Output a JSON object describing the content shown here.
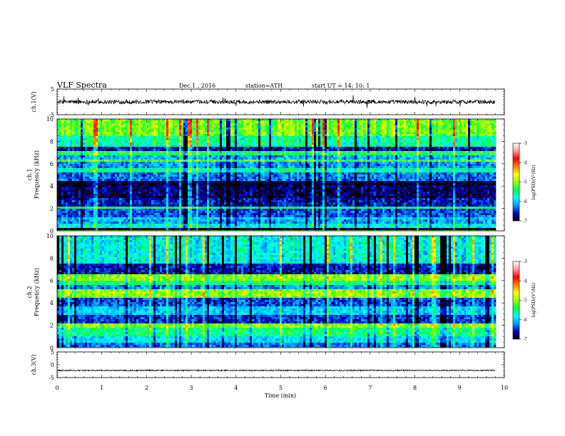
{
  "header": {
    "title": "VLF  Spectra",
    "date": "Dec.1  , 2016",
    "station": "station=ATH",
    "start": "start  UT  =   14: 10: 1"
  },
  "chart_data": [
    {
      "type": "line",
      "name": "ch1-waveform",
      "ylabel": "ch.1(V)",
      "ylim": [
        -5,
        5
      ],
      "yticks": [
        "5",
        "-5"
      ],
      "xlim": [
        0,
        10
      ],
      "duration_min": 9.8,
      "baseline": 0,
      "color": "#000000"
    },
    {
      "type": "heatmap",
      "name": "ch1-spectrogram",
      "ylabel_line1": "ch.1",
      "ylabel_line2": "Frequency  (kHz)",
      "ylim": [
        0,
        10
      ],
      "yticks": [
        "0",
        "2",
        "4",
        "6",
        "8",
        "10"
      ],
      "xlim": [
        0,
        10
      ],
      "duration_min": 9.8,
      "bands": [
        {
          "f": [
            0.0,
            0.35
          ],
          "level": -6.9
        },
        {
          "f": [
            0.35,
            0.7
          ],
          "level": -5.8
        },
        {
          "f": [
            0.7,
            0.95
          ],
          "level": -6.2
        },
        {
          "f": [
            0.95,
            1.3
          ],
          "level": -6.0
        },
        {
          "f": [
            1.3,
            2.0
          ],
          "level": -6.4
        },
        {
          "f": [
            2.0,
            2.2
          ],
          "level": -5.5
        },
        {
          "f": [
            2.2,
            3.0
          ],
          "level": -6.6
        },
        {
          "f": [
            3.0,
            4.0
          ],
          "level": -6.8
        },
        {
          "f": [
            4.0,
            4.5
          ],
          "level": -6.95
        },
        {
          "f": [
            4.5,
            5.2
          ],
          "level": -6.3
        },
        {
          "f": [
            5.2,
            5.6
          ],
          "level": -5.6
        },
        {
          "f": [
            5.6,
            6.1
          ],
          "level": -6.2
        },
        {
          "f": [
            6.1,
            6.4
          ],
          "level": -5.2
        },
        {
          "f": [
            6.4,
            6.8
          ],
          "level": -6.1
        },
        {
          "f": [
            6.8,
            7.2
          ],
          "level": -5.4
        },
        {
          "f": [
            7.2,
            7.6
          ],
          "level": -6.6
        },
        {
          "f": [
            7.6,
            8.4
          ],
          "level": -5.6
        },
        {
          "f": [
            8.4,
            10.0
          ],
          "level": -5.1
        }
      ]
    },
    {
      "type": "heatmap",
      "name": "ch2-spectrogram",
      "ylabel_line1": "ch.2",
      "ylabel_line2": "Frequency  (kHz)",
      "ylim": [
        0,
        10
      ],
      "yticks": [
        "0",
        "2",
        "4",
        "6",
        "8",
        "10"
      ],
      "xlim": [
        0,
        10
      ],
      "duration_min": 9.8,
      "bands": [
        {
          "f": [
            0.0,
            0.4
          ],
          "level": -6.3
        },
        {
          "f": [
            0.4,
            1.1
          ],
          "level": -5.9
        },
        {
          "f": [
            1.1,
            1.8
          ],
          "level": -5.5
        },
        {
          "f": [
            1.8,
            2.1
          ],
          "level": -5.0
        },
        {
          "f": [
            2.1,
            3.0
          ],
          "level": -6.5
        },
        {
          "f": [
            3.0,
            3.6
          ],
          "level": -6.0
        },
        {
          "f": [
            3.6,
            4.4
          ],
          "level": -6.4
        },
        {
          "f": [
            4.4,
            5.2
          ],
          "level": -5.0
        },
        {
          "f": [
            5.2,
            5.6
          ],
          "level": -6.2
        },
        {
          "f": [
            5.6,
            6.0
          ],
          "level": -5.5
        },
        {
          "f": [
            6.0,
            6.5
          ],
          "level": -5.0
        },
        {
          "f": [
            6.5,
            7.5
          ],
          "level": -6.6
        },
        {
          "f": [
            7.5,
            10.0
          ],
          "level": -5.8
        }
      ]
    },
    {
      "type": "line",
      "name": "ch3-waveform",
      "ylabel": "ch.3(V)",
      "ylim": [
        -5,
        5
      ],
      "yticks": [
        "5",
        "0",
        "-5"
      ],
      "xlim": [
        0,
        10
      ],
      "duration_min": 9.8,
      "baseline": -2.2,
      "color": "#000000"
    }
  ],
  "xaxis": {
    "label": "Time  (min)",
    "ticks": [
      "0",
      "1",
      "2",
      "3",
      "4",
      "5",
      "6",
      "7",
      "8",
      "9",
      "10"
    ]
  },
  "colorbar": {
    "label": "log(PSD)(V²/Hz)",
    "ticks": [
      "-3",
      "-4",
      "-5",
      "-6",
      "-7"
    ],
    "range": [
      -7,
      -3
    ],
    "stops": [
      "#000000",
      "#0000c8",
      "#00a0ff",
      "#00ffff",
      "#00ff40",
      "#a0ff00",
      "#ffff00",
      "#ff8000",
      "#ff0000",
      "#ff9a9a",
      "#ffffff"
    ]
  }
}
